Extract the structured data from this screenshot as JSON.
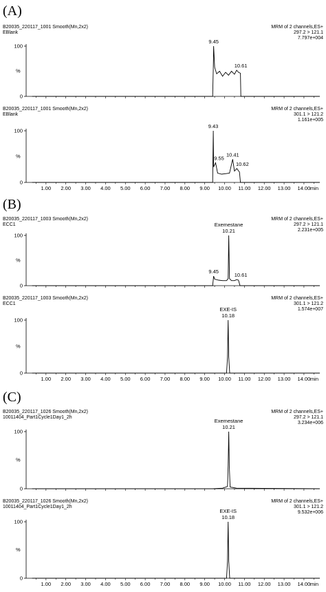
{
  "panels": [
    {
      "label": "(A)",
      "charts": [
        {
          "left_lines": [
            "B20035_220117_1001 Smooth(Mn,2x2)",
            "EBlank"
          ],
          "right_lines": [
            "MRM of 2 channels,ES+",
            "297.2 > 121.1",
            "7.797e+004"
          ],
          "peaks": [
            {
              "label": "9.45",
              "x": 9.45
            },
            {
              "label": "10.61",
              "x": 10.61
            }
          ],
          "show_xaxis": false
        },
        {
          "left_lines": [
            "B20035_220117_1001 Smooth(Mn,2x2)",
            "EBlank"
          ],
          "right_lines": [
            "MRM of 2 channels,ES+",
            "301.1 > 121.2",
            "1.161e+005"
          ],
          "peaks": [
            {
              "label": "9.43",
              "x": 9.43
            },
            {
              "label": "9.55",
              "x": 9.55
            },
            {
              "label": "10.41",
              "x": 10.41
            },
            {
              "label": "10.62",
              "x": 10.62
            }
          ],
          "show_xaxis": true
        }
      ]
    },
    {
      "label": "(B)",
      "charts": [
        {
          "left_lines": [
            "B20035_220117_1003 Smooth(Mn,2x2)",
            "ECC1"
          ],
          "right_lines": [
            "MRM of 2 channels,ES+",
            "297.2 > 121.1",
            "2.231e+005"
          ],
          "peaks": [
            {
              "label": "Exemestane",
              "x": 10.21
            },
            {
              "label": "10.21",
              "x": 10.21
            },
            {
              "label": "9.45",
              "x": 9.45
            },
            {
              "label": "10.61",
              "x": 10.61
            }
          ],
          "show_xaxis": false
        },
        {
          "left_lines": [
            "B20035_220117_1003 Smooth(Mn,2x2)",
            "ECC1"
          ],
          "right_lines": [
            "MRM of 2 channels,ES+",
            "301.1 > 121.2",
            "1.574e+007"
          ],
          "peaks": [
            {
              "label": "EXE-IS",
              "x": 10.18
            },
            {
              "label": "10.18",
              "x": 10.18
            }
          ],
          "show_xaxis": true
        }
      ]
    },
    {
      "label": "(C)",
      "charts": [
        {
          "left_lines": [
            "B20035_220117_1026 Smooth(Mn,2x2)",
            "10011404_Part1Cycle1Day1_2h"
          ],
          "right_lines": [
            "MRM of 2 channels,ES+",
            "297.2 > 121.1",
            "3.234e+006"
          ],
          "peaks": [
            {
              "label": "Exemestane",
              "x": 10.21
            },
            {
              "label": "10.21",
              "x": 10.21
            }
          ],
          "show_xaxis": false
        },
        {
          "left_lines": [
            "B20035_220117_1026 Smooth(Mn,2x2)",
            "10011404_Part1Cycle1Day1_2h"
          ],
          "right_lines": [
            "MRM of 2 channels,ES+",
            "301.1 > 121.2",
            "9.532e+006"
          ],
          "peaks": [
            {
              "label": "EXE-IS",
              "x": 10.18
            },
            {
              "label": "10.18",
              "x": 10.18
            }
          ],
          "show_xaxis": true
        }
      ]
    }
  ],
  "chart_data": {
    "type": "line",
    "xlabel": "min",
    "ylabel": "%",
    "xlim": [
      0.0,
      14.8
    ],
    "ylim": [
      0,
      100
    ],
    "x_ticks": [
      "1.00",
      "2.00",
      "3.00",
      "4.00",
      "5.00",
      "6.00",
      "7.00",
      "8.00",
      "9.00",
      "10.00",
      "11.00",
      "12.00",
      "13.00",
      "14.00"
    ],
    "y_ticks": [
      "0",
      "100"
    ],
    "traces": [
      {
        "x": [
          0.3,
          9.4,
          9.43,
          9.45,
          9.5,
          9.6,
          9.75,
          9.9,
          10.05,
          10.2,
          10.35,
          10.5,
          10.61,
          10.7,
          10.8,
          10.82,
          14.8
        ],
        "y": [
          0,
          0,
          55,
          100,
          58,
          45,
          50,
          40,
          48,
          42,
          50,
          44,
          52,
          48,
          46,
          0,
          0
        ]
      },
      {
        "x": [
          0.3,
          9.4,
          9.43,
          9.45,
          9.55,
          9.65,
          9.85,
          10.05,
          10.25,
          10.41,
          10.5,
          10.62,
          10.75,
          10.8,
          14.8
        ],
        "y": [
          0,
          0,
          100,
          30,
          38,
          18,
          16,
          17,
          18,
          45,
          22,
          27,
          20,
          0,
          0
        ]
      },
      {
        "x": [
          0.3,
          9.4,
          9.45,
          9.5,
          9.7,
          9.9,
          10.1,
          10.18,
          10.21,
          10.25,
          10.35,
          10.5,
          10.61,
          10.7,
          10.78,
          14.8
        ],
        "y": [
          0,
          0,
          19,
          13,
          11,
          10,
          10,
          14,
          100,
          14,
          10,
          10,
          12,
          11,
          0,
          0
        ]
      },
      {
        "x": [
          0.3,
          10.1,
          10.15,
          10.18,
          10.21,
          10.26,
          14.8
        ],
        "y": [
          0,
          0,
          30,
          100,
          30,
          0,
          0
        ]
      },
      {
        "x": [
          0.3,
          9.4,
          9.9,
          10.15,
          10.18,
          10.21,
          10.24,
          10.28,
          10.6,
          14.8
        ],
        "y": [
          0,
          0,
          1,
          4,
          40,
          100,
          40,
          3,
          1,
          0
        ]
      },
      {
        "x": [
          0.3,
          10.1,
          10.15,
          10.18,
          10.21,
          10.26,
          14.8
        ],
        "y": [
          0,
          0,
          30,
          100,
          30,
          0,
          0
        ]
      }
    ]
  }
}
